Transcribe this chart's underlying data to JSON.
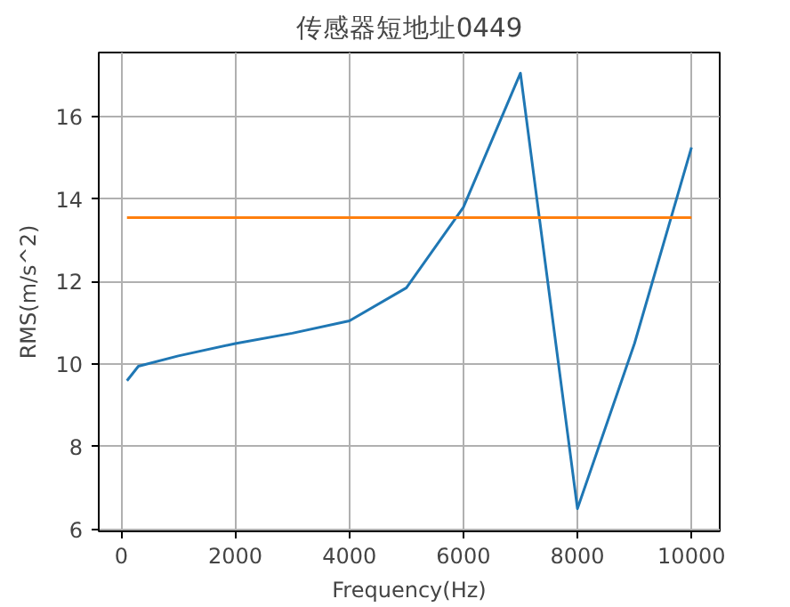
{
  "chart_data": {
    "type": "line",
    "title": "传感器短地址0449",
    "xlabel": "Frequency(Hz)",
    "ylabel": "RMS(m/s^2)",
    "xlim": [
      -395,
      10495
    ],
    "ylim": [
      5.95,
      17.55
    ],
    "xticks": [
      0,
      2000,
      4000,
      6000,
      8000,
      10000
    ],
    "yticks": [
      6,
      8,
      10,
      12,
      14,
      16
    ],
    "grid": true,
    "series": [
      {
        "color": "#1f77b4",
        "x": [
          100,
          300,
          1000,
          2000,
          3000,
          4000,
          5000,
          6000,
          7000,
          8000,
          9000,
          10000
        ],
        "values": [
          9.6,
          9.95,
          10.2,
          10.5,
          10.75,
          11.05,
          11.85,
          13.8,
          17.05,
          6.5,
          10.5,
          15.25
        ]
      },
      {
        "color": "#ff7f0e",
        "x": [
          100,
          10000
        ],
        "values": [
          13.55,
          13.55
        ]
      }
    ]
  }
}
